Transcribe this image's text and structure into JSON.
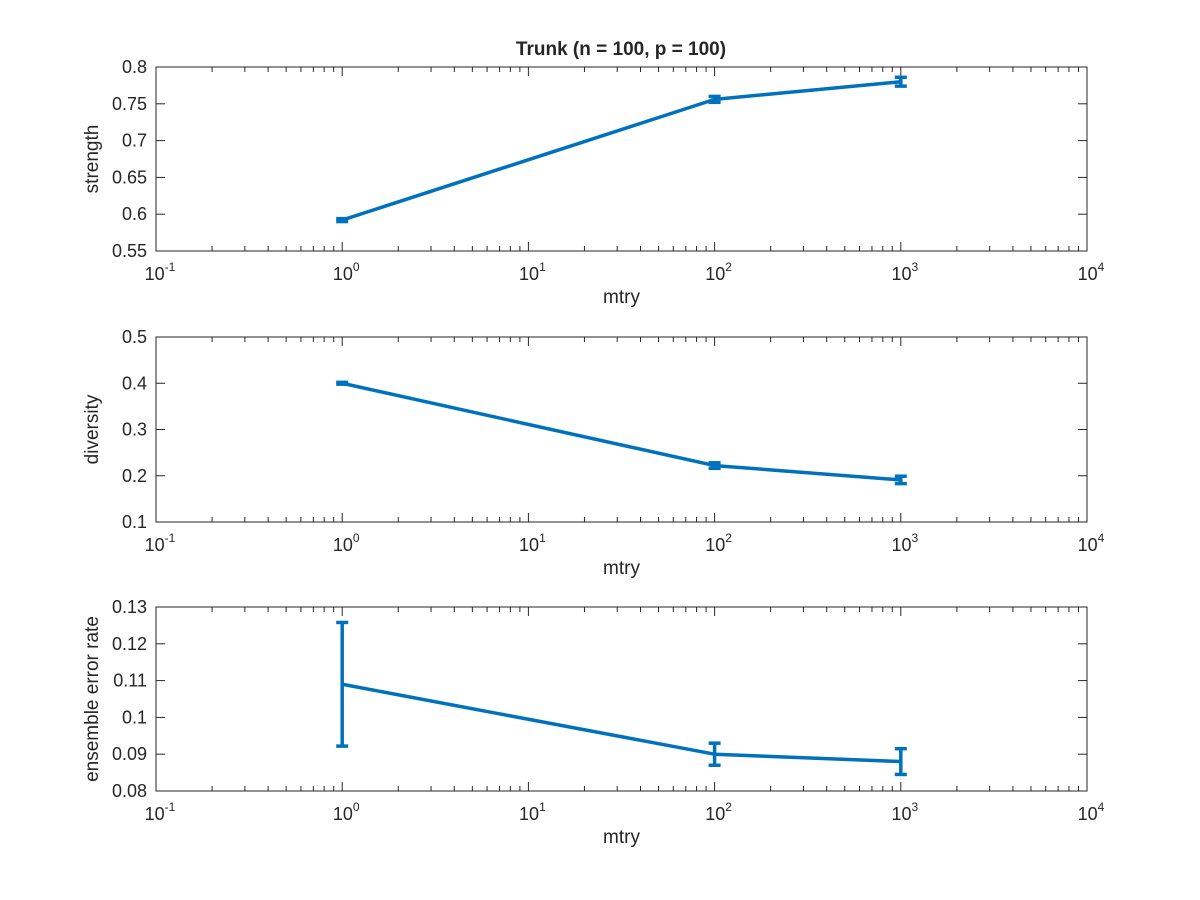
{
  "figure": {
    "title": "Trunk (n = 100, p = 100)"
  },
  "chart_data": [
    {
      "type": "line",
      "title": "Trunk (n = 100, p = 100)",
      "xlabel": "mtry",
      "ylabel": "strength",
      "xscale": "log",
      "xlim": [
        0.1,
        10000
      ],
      "ylim": [
        0.55,
        0.8
      ],
      "x_ticks": [
        "10^-1",
        "10^0",
        "10^1",
        "10^2",
        "10^3",
        "10^4"
      ],
      "y_ticks": [
        "0.55",
        "0.6",
        "0.65",
        "0.7",
        "0.75",
        "0.8"
      ],
      "y_tick_values": [
        0.55,
        0.6,
        0.65,
        0.7,
        0.75,
        0.8
      ],
      "x": [
        1,
        100,
        1000
      ],
      "values": [
        0.592,
        0.756,
        0.78
      ],
      "error": [
        0.002,
        0.004,
        0.006
      ],
      "color": "#0072BD",
      "error_bars": true,
      "grid": false,
      "legend": "none"
    },
    {
      "type": "line",
      "xlabel": "mtry",
      "ylabel": "diversity",
      "xscale": "log",
      "xlim": [
        0.1,
        10000
      ],
      "ylim": [
        0.1,
        0.5
      ],
      "x_ticks": [
        "10^-1",
        "10^0",
        "10^1",
        "10^2",
        "10^3",
        "10^4"
      ],
      "y_ticks": [
        "0.1",
        "0.2",
        "0.3",
        "0.4",
        "0.5"
      ],
      "y_tick_values": [
        0.1,
        0.2,
        0.3,
        0.4,
        0.5
      ],
      "x": [
        1,
        100,
        1000
      ],
      "values": [
        0.4,
        0.222,
        0.191
      ],
      "error": [
        0.002,
        0.006,
        0.008
      ],
      "color": "#0072BD",
      "error_bars": true,
      "grid": false,
      "legend": "none"
    },
    {
      "type": "line",
      "xlabel": "mtry",
      "ylabel": "ensemble error rate",
      "xscale": "log",
      "xlim": [
        0.1,
        10000
      ],
      "ylim": [
        0.08,
        0.13
      ],
      "x_ticks": [
        "10^-1",
        "10^0",
        "10^1",
        "10^2",
        "10^3",
        "10^4"
      ],
      "y_ticks": [
        "0.08",
        "0.09",
        "0.1",
        "0.11",
        "0.12",
        "0.13"
      ],
      "y_tick_values": [
        0.08,
        0.09,
        0.1,
        0.11,
        0.12,
        0.13
      ],
      "x": [
        1,
        100,
        1000
      ],
      "values": [
        0.109,
        0.09,
        0.088
      ],
      "error": [
        0.0168,
        0.003,
        0.0035
      ],
      "color": "#0072BD",
      "error_bars": true,
      "grid": false,
      "legend": "none"
    }
  ]
}
